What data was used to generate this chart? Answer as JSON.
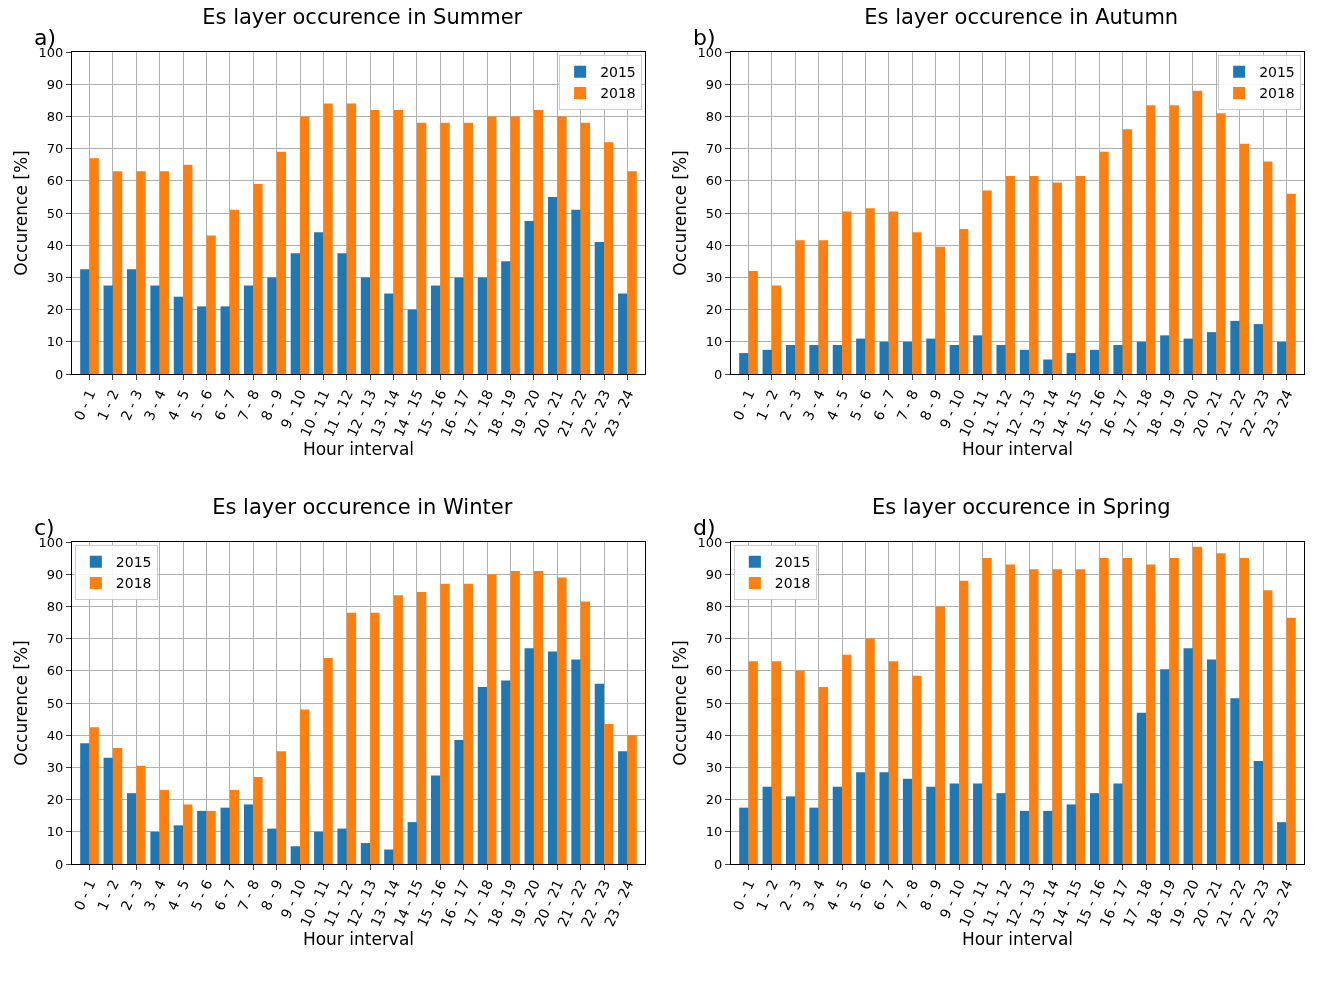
{
  "chart_data": [
    {
      "type": "bar",
      "title": "Es layer occurence in Summer",
      "annotations": [
        "a)"
      ],
      "xlabel": "Hour interval",
      "ylabel": "Occurence [%]",
      "categories": [
        "0 - 1",
        "1 - 2",
        "2 - 3",
        "3 - 4",
        "4 - 5",
        "5 - 6",
        "6 - 7",
        "7 - 8",
        "8 - 9",
        "9 - 10",
        "10 - 11",
        "11 - 12",
        "12 - 13",
        "13 - 14",
        "14 - 15",
        "15 - 16",
        "16 - 17",
        "17 - 18",
        "18 - 19",
        "19 - 20",
        "20 - 21",
        "21 - 22",
        "22 - 23",
        "23 - 24"
      ],
      "series": [
        {
          "name": "2015",
          "color": "#1f77b4",
          "values": [
            32.5,
            27.5,
            32.5,
            27.5,
            24,
            21,
            21,
            27.5,
            30,
            37.5,
            44,
            37.5,
            30,
            25,
            20,
            27.5,
            30,
            30,
            35,
            47.5,
            55,
            51,
            41,
            25
          ]
        },
        {
          "name": "2018",
          "color": "#ff7f0e",
          "values": [
            67,
            63,
            63,
            63,
            65,
            43,
            51,
            59,
            69,
            80,
            84,
            84,
            82,
            82,
            78,
            78,
            78,
            80,
            80,
            82,
            80,
            78,
            72,
            63
          ]
        }
      ],
      "ylim": [
        0,
        100
      ],
      "yticks": [
        0,
        10,
        20,
        30,
        40,
        50,
        60,
        70,
        80,
        90,
        100
      ],
      "grid": true,
      "legend": "top right"
    },
    {
      "type": "bar",
      "title": "Es layer occurence in Autumn",
      "annotations": [
        "b)"
      ],
      "xlabel": "Hour interval",
      "ylabel": "Occurence [%]",
      "categories": [
        "0 - 1",
        "1 - 2",
        "2 - 3",
        "3 - 4",
        "4 - 5",
        "5 - 6",
        "6 - 7",
        "7 - 8",
        "8 - 9",
        "9 - 10",
        "10 - 11",
        "11 - 12",
        "12 - 13",
        "13 - 14",
        "14 - 15",
        "15 - 16",
        "16 - 17",
        "17 - 18",
        "18 - 19",
        "19 - 20",
        "20 - 21",
        "21 - 22",
        "22 - 23",
        "23 - 24"
      ],
      "series": [
        {
          "name": "2015",
          "color": "#1f77b4",
          "values": [
            6.5,
            7.5,
            9,
            9,
            9,
            11,
            10,
            10,
            11,
            9,
            12,
            9,
            7.5,
            4.5,
            6.5,
            7.5,
            9,
            10,
            12,
            11,
            13,
            16.5,
            15.5,
            10
          ]
        },
        {
          "name": "2018",
          "color": "#ff7f0e",
          "values": [
            32,
            27.5,
            41.5,
            41.5,
            50.5,
            51.5,
            50.5,
            44,
            39.5,
            45,
            57,
            61.5,
            61.5,
            59.5,
            61.5,
            69,
            76,
            83.5,
            83.5,
            88,
            81,
            71.5,
            66,
            56
          ]
        }
      ],
      "ylim": [
        0,
        100
      ],
      "yticks": [
        0,
        10,
        20,
        30,
        40,
        50,
        60,
        70,
        80,
        90,
        100
      ],
      "grid": true,
      "legend": "top right"
    },
    {
      "type": "bar",
      "title": "Es layer occurence in Winter",
      "annotations": [
        "c)"
      ],
      "xlabel": "Hour interval",
      "ylabel": "Occurence [%]",
      "categories": [
        "0 - 1",
        "1 - 2",
        "2 - 3",
        "3 - 4",
        "4 - 5",
        "5 - 6",
        "6 - 7",
        "7 - 8",
        "8 - 9",
        "9 - 10",
        "10 - 11",
        "11 - 12",
        "12 - 13",
        "13 - 14",
        "14 - 15",
        "15 - 16",
        "16 - 17",
        "17 - 18",
        "18 - 19",
        "19 - 20",
        "20 - 21",
        "21 - 22",
        "22 - 23",
        "23 - 24"
      ],
      "series": [
        {
          "name": "2015",
          "color": "#1f77b4",
          "values": [
            37.5,
            33,
            22,
            10,
            12,
            16.5,
            17.5,
            18.5,
            11,
            5.5,
            10,
            11,
            6.5,
            4.5,
            13,
            27.5,
            38.5,
            55,
            57,
            67,
            66,
            63.5,
            56,
            35
          ]
        },
        {
          "name": "2018",
          "color": "#ff7f0e",
          "values": [
            42.5,
            36,
            30.5,
            23,
            18.5,
            16.5,
            23,
            27,
            35,
            48,
            64,
            78,
            78,
            83.5,
            84.5,
            87,
            87,
            90,
            91,
            91,
            89,
            81.5,
            43.5,
            40
          ]
        }
      ],
      "ylim": [
        0,
        100
      ],
      "yticks": [
        0,
        10,
        20,
        30,
        40,
        50,
        60,
        70,
        80,
        90,
        100
      ],
      "grid": true,
      "legend": "top left"
    },
    {
      "type": "bar",
      "title": "Es layer occurence in Spring",
      "annotations": [
        "d)"
      ],
      "xlabel": "Hour interval",
      "ylabel": "Occurence [%]",
      "categories": [
        "0 - 1",
        "1 - 2",
        "2 - 3",
        "3 - 4",
        "4 - 5",
        "5 - 6",
        "6 - 7",
        "7 - 8",
        "8 - 9",
        "9 - 10",
        "10 - 11",
        "11 - 12",
        "12 - 13",
        "13 - 14",
        "14 - 15",
        "15 - 16",
        "16 - 17",
        "17 - 18",
        "18 - 19",
        "19 - 20",
        "20 - 21",
        "21 - 22",
        "22 - 23",
        "23 - 24"
      ],
      "series": [
        {
          "name": "2015",
          "color": "#1f77b4",
          "values": [
            17.5,
            24,
            21,
            17.5,
            24,
            28.5,
            28.5,
            26.5,
            24,
            25,
            25,
            22,
            16.5,
            16.5,
            18.5,
            22,
            25,
            47,
            60.5,
            67,
            63.5,
            51.5,
            32,
            13
          ]
        },
        {
          "name": "2018",
          "color": "#ff7f0e",
          "values": [
            63,
            63,
            60,
            55,
            65,
            70,
            63,
            58.5,
            80,
            88,
            95,
            93,
            91.5,
            91.5,
            91.5,
            95,
            95,
            93,
            95,
            98.5,
            96.5,
            95,
            85,
            76.5
          ]
        }
      ],
      "ylim": [
        0,
        100
      ],
      "yticks": [
        0,
        10,
        20,
        30,
        40,
        50,
        60,
        70,
        80,
        90,
        100
      ],
      "grid": true,
      "legend": "top left"
    }
  ]
}
